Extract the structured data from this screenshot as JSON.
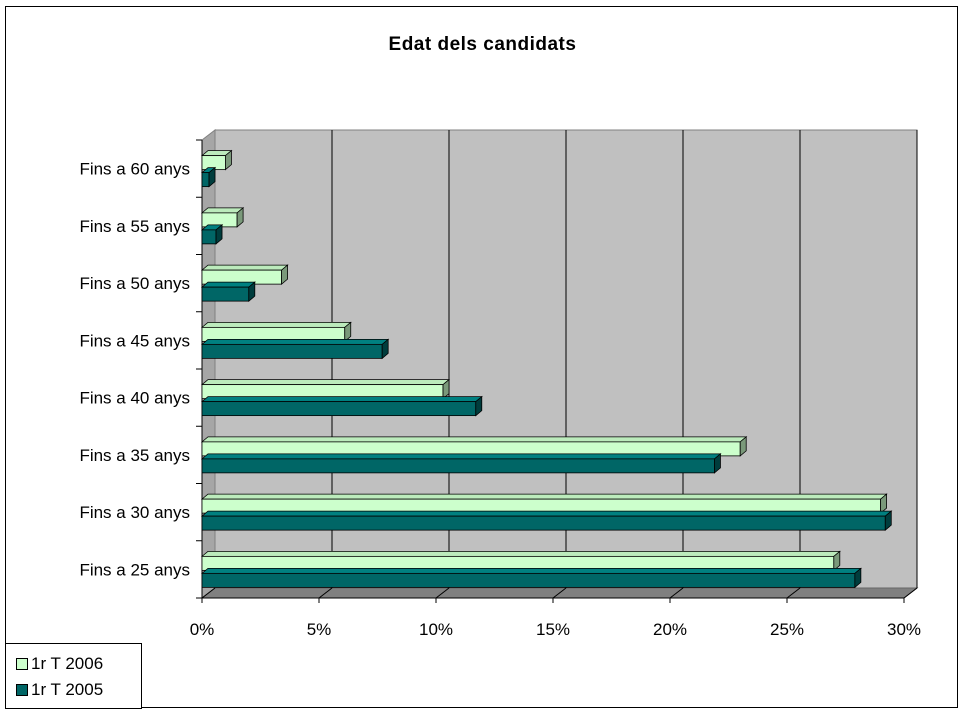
{
  "chart_data": {
    "type": "bar",
    "orientation": "horizontal",
    "title": "Edat dels candidats",
    "categories": [
      "Fins a 25 anys",
      "Fins a 30 anys",
      "Fins a 35 anys",
      "Fins a 40 anys",
      "Fins a 45 anys",
      "Fins a 50 anys",
      "Fins a 55 anys",
      "Fins a 60 anys"
    ],
    "series": [
      {
        "name": "1r T 2006",
        "color": "#ccffcc",
        "values": [
          27.0,
          29.0,
          23.0,
          10.3,
          6.1,
          3.4,
          1.5,
          1.0
        ]
      },
      {
        "name": "1r T 2005",
        "color": "#006666",
        "values": [
          27.9,
          29.2,
          21.9,
          11.7,
          7.7,
          2.0,
          0.6,
          0.3
        ]
      }
    ],
    "x_ticks": [
      "0%",
      "5%",
      "10%",
      "15%",
      "20%",
      "25%",
      "30%"
    ],
    "xlim": [
      0,
      30
    ],
    "grid": "vertical",
    "legend_position": "bottom-left",
    "plot_background": "#c0c0c0"
  }
}
